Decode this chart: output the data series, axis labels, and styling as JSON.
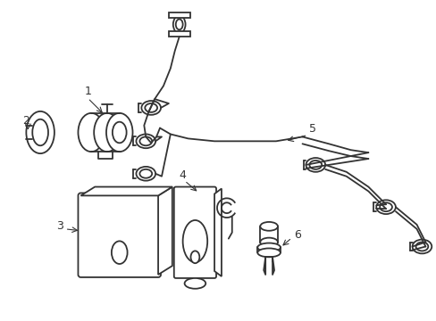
{
  "background_color": "#ffffff",
  "line_color": "#333333",
  "line_width": 1.3,
  "label_color": "#000000",
  "fig_width": 4.89,
  "fig_height": 3.6,
  "dpi": 100
}
